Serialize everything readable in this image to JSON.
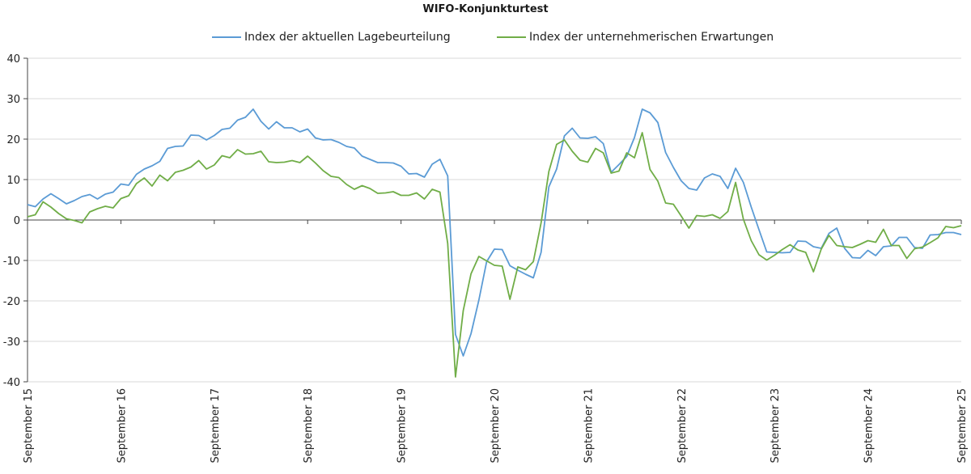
{
  "chart_data": {
    "type": "line",
    "title": "WIFO-Konjunkturtest",
    "xlabel": "",
    "ylabel": "",
    "ylim": [
      -40,
      40
    ],
    "yticks": [
      40,
      30,
      20,
      10,
      0,
      -10,
      -20,
      -30,
      -40
    ],
    "ytick_labels": [
      "40",
      "30",
      "20",
      "10",
      "0",
      "-10",
      "-20",
      "-30",
      "-40"
    ],
    "xtick_labels": [
      "September 15",
      "September 16",
      "September 17",
      "September 18",
      "September 19",
      "September 20",
      "September 21",
      "September 22",
      "September 23",
      "September 24",
      "September 25"
    ],
    "x_start": "2015-09",
    "x_end": "2025-09",
    "grid": "horizontal",
    "legend_position": "top",
    "series": [
      {
        "name": "Index der aktuellen Lagebeurteilung",
        "color": "#5b9bd5",
        "values": [
          3.8,
          3.3,
          5.2,
          6.5,
          5.3,
          4.0,
          4.8,
          5.8,
          6.3,
          5.2,
          6.4,
          6.9,
          8.9,
          8.6,
          11.3,
          12.6,
          13.4,
          14.5,
          17.7,
          18.2,
          18.3,
          21.0,
          20.9,
          19.8,
          20.9,
          22.4,
          22.7,
          24.7,
          25.4,
          27.4,
          24.4,
          22.5,
          24.3,
          22.8,
          22.8,
          21.8,
          22.5,
          20.3,
          19.8,
          19.9,
          19.2,
          18.2,
          17.8,
          15.8,
          15.0,
          14.2,
          14.2,
          14.1,
          13.3,
          11.4,
          11.5,
          10.6,
          13.8,
          15.0,
          10.9,
          -28.3,
          -33.6,
          -28.1,
          -19.8,
          -10.3,
          -7.2,
          -7.3,
          -11.3,
          -12.4,
          -13.4,
          -14.3,
          -8.0,
          8.2,
          12.6,
          20.8,
          22.7,
          20.3,
          20.2,
          20.6,
          18.9,
          11.8,
          13.7,
          15.7,
          20.4,
          27.4,
          26.5,
          24.1,
          16.7,
          13.0,
          9.7,
          7.8,
          7.4,
          10.4,
          11.4,
          10.8,
          7.8,
          12.8,
          9.3,
          3.2,
          -2.4,
          -7.9,
          -8.0,
          -8.1,
          -8.0,
          -5.2,
          -5.3,
          -6.6,
          -7.0,
          -3.3,
          -2.0,
          -7.0,
          -9.3,
          -9.4,
          -7.5,
          -8.8,
          -6.6,
          -6.4,
          -4.3,
          -4.3,
          -6.8,
          -7.0,
          -3.7,
          -3.6,
          -3.1,
          -3.1,
          -3.6
        ]
      },
      {
        "name": "Index der unternehmerischen Erwartungen",
        "color": "#70ad47",
        "values": [
          0.8,
          1.3,
          4.5,
          3.2,
          1.6,
          0.3,
          -0.1,
          -0.7,
          2.0,
          2.8,
          3.4,
          3.0,
          5.3,
          6.0,
          9.0,
          10.4,
          8.4,
          11.1,
          9.7,
          11.8,
          12.3,
          13.1,
          14.7,
          12.6,
          13.6,
          15.9,
          15.4,
          17.4,
          16.3,
          16.4,
          17.0,
          14.4,
          14.2,
          14.3,
          14.7,
          14.2,
          15.8,
          14.1,
          12.2,
          10.8,
          10.5,
          8.8,
          7.6,
          8.5,
          7.8,
          6.6,
          6.7,
          7.0,
          6.1,
          6.1,
          6.7,
          5.2,
          7.6,
          6.9,
          -5.8,
          -38.8,
          -22.4,
          -13.3,
          -9.0,
          -10.1,
          -11.2,
          -11.4,
          -19.6,
          -11.6,
          -12.3,
          -10.3,
          -0.7,
          12.0,
          18.7,
          19.8,
          17.0,
          14.8,
          14.3,
          17.7,
          16.6,
          11.6,
          12.1,
          16.6,
          15.4,
          21.6,
          12.5,
          9.6,
          4.2,
          3.9,
          1.0,
          -2.0,
          1.1,
          0.9,
          1.3,
          0.4,
          2.1,
          9.3,
          0.2,
          -5.1,
          -8.6,
          -9.9,
          -8.7,
          -7.3,
          -6.1,
          -7.4,
          -8.0,
          -12.8,
          -7.2,
          -3.8,
          -6.3,
          -6.6,
          -6.8,
          -6.0,
          -5.1,
          -5.5,
          -2.3,
          -6.3,
          -6.3,
          -9.5,
          -7.1,
          -6.7,
          -5.6,
          -4.4,
          -1.6,
          -1.9,
          -1.4
        ]
      }
    ]
  }
}
